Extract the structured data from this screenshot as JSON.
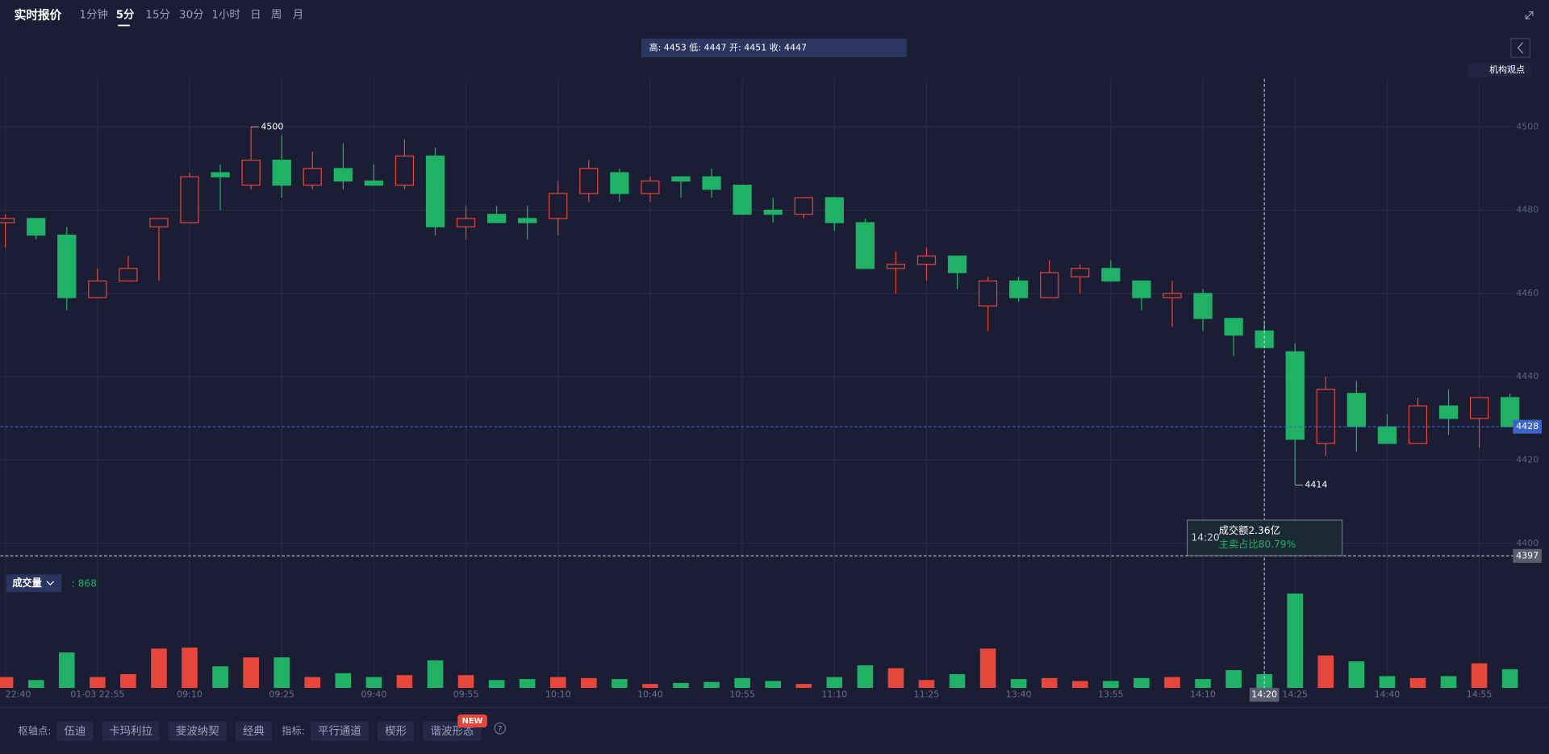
{
  "ui": {
    "tabs": {
      "title": "实时报价",
      "items": [
        "1分钟",
        "5分",
        "15分",
        "30分",
        "1小时",
        "日",
        "周",
        "月"
      ],
      "active": 1
    },
    "ohlc_labels": {
      "high": "高:",
      "low": "低:",
      "open": "开:",
      "close": "收:"
    },
    "opinion": "机构观点",
    "volume_label": "成交量",
    "volume_colon": ":",
    "tooltip": {
      "amount": "成交额2.36亿",
      "sell_ratio": "主卖占比80.79%"
    },
    "toolbar": {
      "pivot_label": "枢轴点:",
      "pivots": [
        "伍迪",
        "卡玛利拉",
        "斐波纳契",
        "经典"
      ],
      "indicator_label": "指标:",
      "indicators": [
        "平行通道",
        "楔形",
        "谐波形态"
      ],
      "badge": "NEW",
      "help": "?"
    }
  },
  "chart_data": {
    "type": "candlestick",
    "categories": [
      "22:40",
      null,
      null,
      "01-03 22:55",
      null,
      null,
      "09:10",
      null,
      null,
      "09:25",
      null,
      null,
      "09:40",
      null,
      null,
      "09:55",
      null,
      null,
      "10:10",
      null,
      null,
      "10:40",
      null,
      null,
      "10:55",
      null,
      null,
      "11:10",
      null,
      null,
      "11:25",
      null,
      null,
      "13:40",
      null,
      null,
      "13:55",
      null,
      null,
      "14:10",
      null,
      null,
      "14:25",
      null,
      null,
      "14:40",
      null,
      null,
      "14:55",
      null
    ],
    "open": [
      4477,
      4478,
      4474,
      4459,
      4463,
      4476,
      4477,
      4489,
      4486,
      4492,
      4486,
      4490,
      4487,
      4486,
      4493,
      4476,
      4479,
      4478,
      4478,
      4484,
      4489,
      4484,
      4488,
      4488,
      4486,
      4480,
      4479,
      4483,
      4477,
      4466,
      4467,
      4469,
      4457,
      4463,
      4459,
      4464,
      4466,
      4463,
      4459,
      4460,
      4454,
      4451,
      4446,
      4424,
      4436,
      4428,
      4424,
      4433,
      4430,
      4435
    ],
    "high": [
      4479,
      4478,
      4476,
      4466,
      4469,
      4478,
      4489,
      4491,
      4500,
      4498,
      4494,
      4496,
      4491,
      4497,
      4495,
      4481,
      4481,
      4481,
      4487,
      4492,
      4490,
      4488,
      4488,
      4490,
      4486,
      4483,
      4483,
      4483,
      4478,
      4470,
      4471,
      4469,
      4464,
      4464,
      4468,
      4467,
      4468,
      4463,
      4463,
      4461,
      4454,
      4453,
      4448,
      4440,
      4439,
      4431,
      4435,
      4437,
      4435,
      4436
    ],
    "low": [
      4471,
      4473,
      4456,
      4459,
      4463,
      4463,
      4477,
      4480,
      4485,
      4483,
      4485,
      4485,
      4486,
      4485,
      4474,
      4473,
      4477,
      4473,
      4474,
      4482,
      4482,
      4482,
      4483,
      4483,
      4479,
      4477,
      4478,
      4475,
      4466,
      4460,
      4463,
      4461,
      4451,
      4458,
      4459,
      4460,
      4463,
      4456,
      4452,
      4451,
      4445,
      4447,
      4414,
      4421,
      4422,
      4424,
      4424,
      4426,
      4423,
      4428
    ],
    "close": [
      4478,
      4474,
      4459,
      4463,
      4466,
      4478,
      4488,
      4488,
      4492,
      4486,
      4490,
      4487,
      4486,
      4493,
      4476,
      4478,
      4477,
      4477,
      4484,
      4490,
      4484,
      4487,
      4487,
      4485,
      4479,
      4479,
      4483,
      4477,
      4466,
      4467,
      4469,
      4465,
      4463,
      4459,
      4465,
      4466,
      4463,
      4459,
      4460,
      4454,
      4450,
      4447,
      4425,
      4437,
      4428,
      4424,
      4433,
      4430,
      4435,
      4428
    ],
    "volume": [
      682,
      496,
      2232,
      682,
      868,
      2480,
      2542,
      1364,
      1922,
      1922,
      682,
      930,
      682,
      806,
      1736,
      806,
      496,
      558,
      682,
      620,
      558,
      248,
      310,
      372,
      620,
      434,
      248,
      682,
      1426,
      1240,
      496,
      868,
      2480,
      558,
      620,
      434,
      434,
      620,
      682,
      558,
      1116,
      868,
      5952,
      2046,
      1674,
      744,
      620,
      744,
      1550,
      1178
    ],
    "up_color": "#e8463b",
    "down_color": "#1fb267",
    "ylim": [
      4393.5,
      4511.5
    ],
    "yticks": [
      4400,
      4420,
      4440,
      4460,
      4480,
      4500
    ],
    "volume_ylim": [
      0,
      6600
    ],
    "grid": true,
    "crosshair": {
      "index": 41,
      "time": "14:20",
      "price": 4397
    }
  }
}
